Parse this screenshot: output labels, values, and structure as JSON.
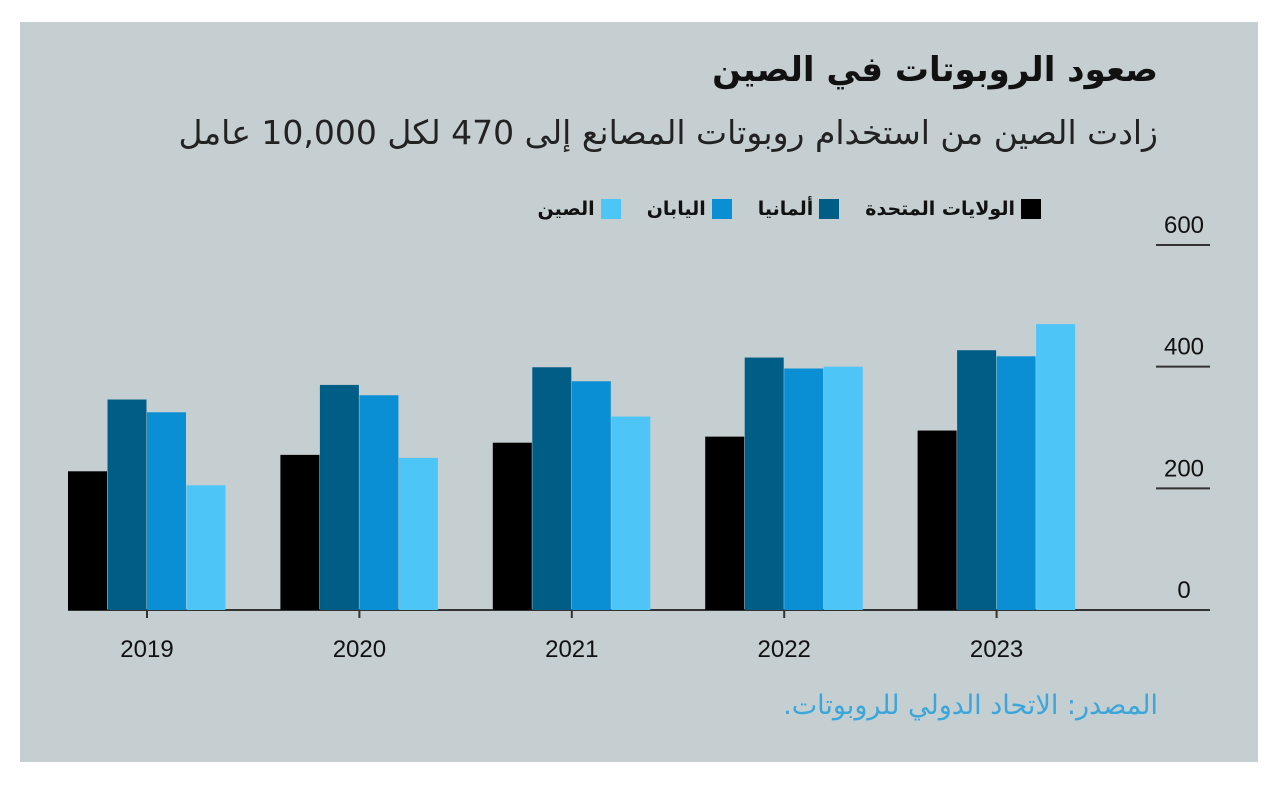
{
  "chart_data": {
    "type": "bar",
    "title": "صعود الروبوتات في الصين",
    "subtitle": "زادت الصين من استخدام روبوتات المصانع إلى 470 لكل 10,000 عامل",
    "categories": [
      "2019",
      "2020",
      "2021",
      "2022",
      "2023"
    ],
    "series": [
      {
        "name": "الولايات المتحدة",
        "color": "#000000",
        "values": [
          228,
          255,
          275,
          285,
          295
        ]
      },
      {
        "name": "ألمانيا",
        "color": "#005e86",
        "values": [
          346,
          370,
          399,
          415,
          427
        ]
      },
      {
        "name": "اليابان",
        "color": "#0a8ed4",
        "values": [
          325,
          353,
          376,
          397,
          417
        ]
      },
      {
        "name": "الصين",
        "color": "#4ec5f7",
        "values": [
          205,
          250,
          318,
          400,
          470
        ]
      }
    ],
    "ylim": [
      0,
      600
    ],
    "yticks": [
      "0",
      "200",
      "400",
      "600"
    ],
    "source": "المصدر: الاتحاد الدولي للروبوتات."
  }
}
